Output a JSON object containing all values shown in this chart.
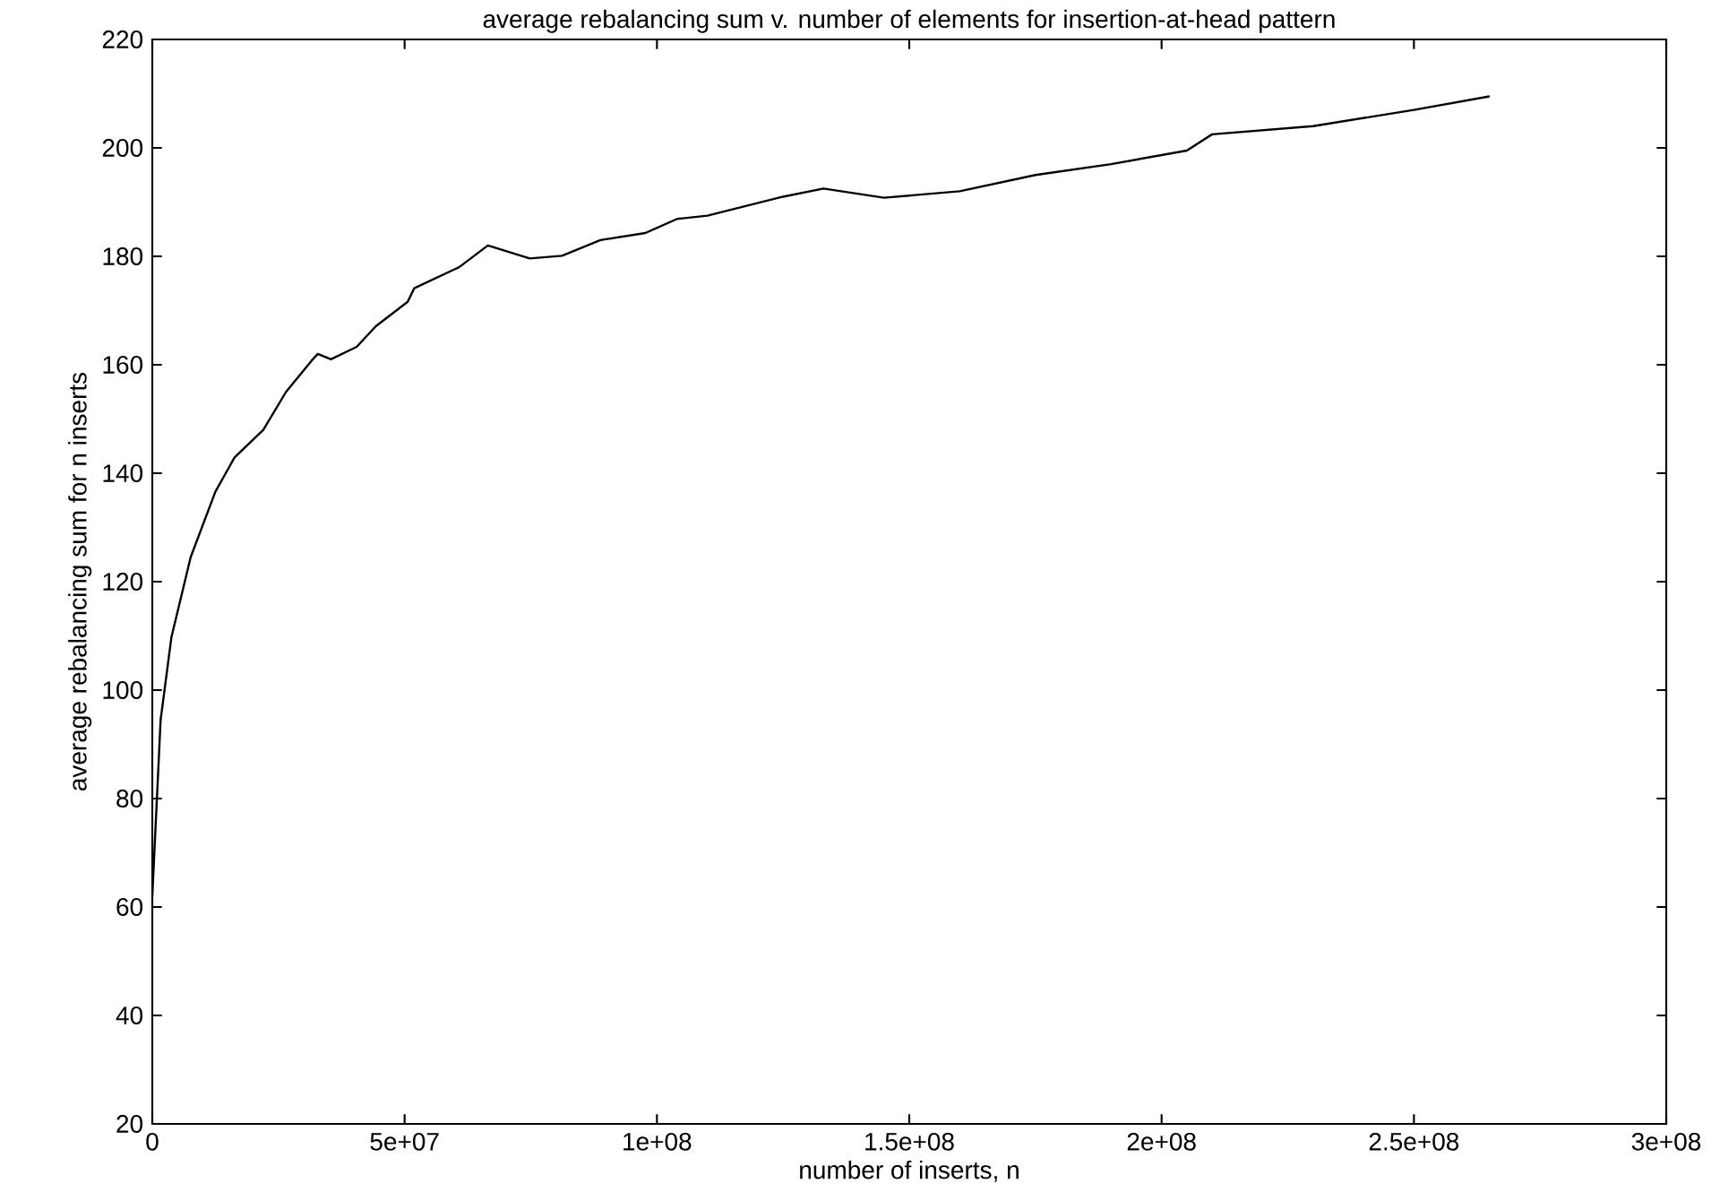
{
  "chart_data": {
    "type": "line",
    "title": "average rebalancing sum v. number of elements for insertion-at-head pattern",
    "xlabel": "number of inserts, n",
    "ylabel": "average rebalancing sum for n inserts",
    "x": [
      0,
      1650000,
      3800000,
      7600000,
      12500000,
      16300000,
      22000000,
      26500000,
      31600000,
      32800000,
      35400000,
      40500000,
      44300000,
      50600000,
      51900000,
      60800000,
      66500000,
      74800000,
      81200000,
      88800000,
      97700000,
      104000000,
      110000000,
      125000000,
      133000000,
      145000000,
      160000000,
      175000000,
      190000000,
      205000000,
      210000000,
      230000000,
      250000000,
      265000000
    ],
    "series": [
      {
        "color": "#000000",
        "values": [
          62,
          94.5,
          109.8,
          124.5,
          136.6,
          142.9,
          148,
          155,
          160.8,
          162,
          161,
          163.3,
          167.1,
          171.6,
          174.1,
          178,
          182,
          179.6,
          180.1,
          183,
          184.3,
          186.9,
          187.5,
          191,
          192.5,
          190.8,
          192,
          195,
          197,
          199.5,
          202.5,
          204,
          207,
          209.5
        ]
      }
    ],
    "xlim": [
      0,
      300000000
    ],
    "ylim": [
      20,
      220
    ],
    "xticks": [
      {
        "value": 0,
        "label": "0"
      },
      {
        "value": 50000000,
        "label": "5e+07"
      },
      {
        "value": 100000000,
        "label": "1e+08"
      },
      {
        "value": 150000000,
        "label": "1.5e+08"
      },
      {
        "value": 200000000,
        "label": "2e+08"
      },
      {
        "value": 250000000,
        "label": "2.5e+08"
      },
      {
        "value": 300000000,
        "label": "3e+08"
      }
    ],
    "yticks": [
      20,
      40,
      60,
      80,
      100,
      120,
      140,
      160,
      180,
      200,
      220
    ],
    "grid": false,
    "marker": "none",
    "line_style": "solid"
  }
}
